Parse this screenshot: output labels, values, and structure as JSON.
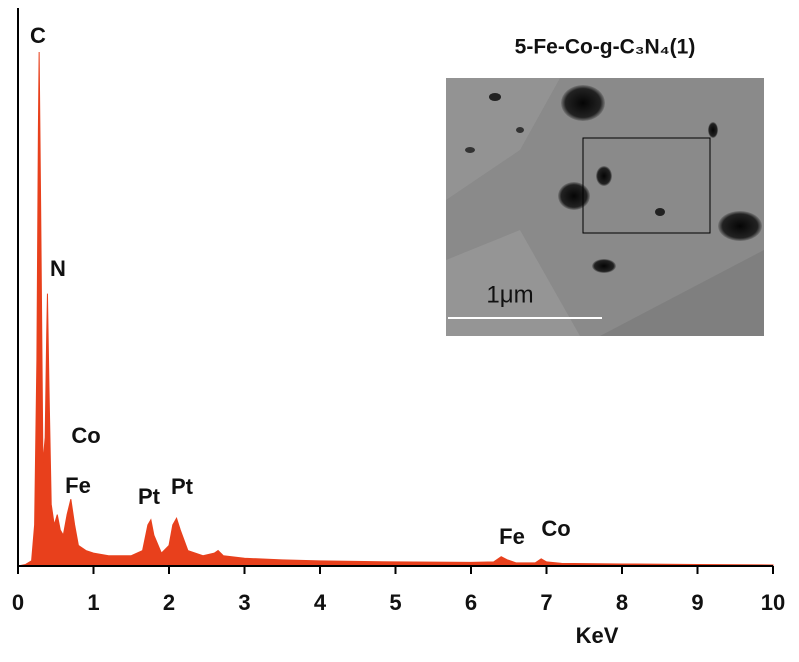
{
  "chart_data": {
    "type": "spectrum",
    "inset_title": "5-Fe-Co-g-C₃N₄(1)",
    "scale_bar_label": "1μm",
    "xlabel": "KeV",
    "annotations": [
      "C",
      "N",
      "Co",
      "Fe",
      "Pt",
      "Pt",
      "Fe",
      "Co"
    ],
    "color": "#e8401c",
    "xlim": [
      0,
      10
    ],
    "xticks": [
      0,
      1,
      2,
      3,
      4,
      5,
      6,
      7,
      8,
      9,
      10
    ],
    "ylim": [
      0,
      100
    ],
    "x": [
      0.0,
      0.1,
      0.18,
      0.22,
      0.25,
      0.27,
      0.28,
      0.3,
      0.33,
      0.36,
      0.38,
      0.39,
      0.41,
      0.44,
      0.48,
      0.52,
      0.56,
      0.6,
      0.65,
      0.7,
      0.75,
      0.8,
      0.9,
      1.0,
      1.2,
      1.5,
      1.65,
      1.72,
      1.76,
      1.8,
      1.9,
      2.0,
      2.05,
      2.1,
      2.15,
      2.25,
      2.45,
      2.6,
      2.65,
      2.72,
      3.0,
      3.5,
      4.0,
      5.0,
      6.0,
      6.3,
      6.4,
      6.48,
      6.6,
      6.85,
      6.93,
      7.0,
      7.2,
      8.0,
      9.0,
      10.0
    ],
    "values": [
      0,
      0.3,
      1,
      8,
      40,
      85,
      100,
      70,
      20,
      25,
      45,
      53,
      35,
      12,
      8,
      10,
      7,
      6,
      10,
      13,
      8,
      4,
      3,
      2.5,
      2,
      2,
      3,
      8,
      9,
      6,
      2.5,
      4,
      8,
      9.3,
      7,
      3,
      2,
      2.5,
      3,
      2,
      1.5,
      1.2,
      1,
      0.8,
      0.7,
      0.8,
      1.8,
      1.2,
      0.6,
      0.6,
      1.4,
      0.8,
      0.5,
      0.4,
      0.3,
      0.2
    ]
  }
}
